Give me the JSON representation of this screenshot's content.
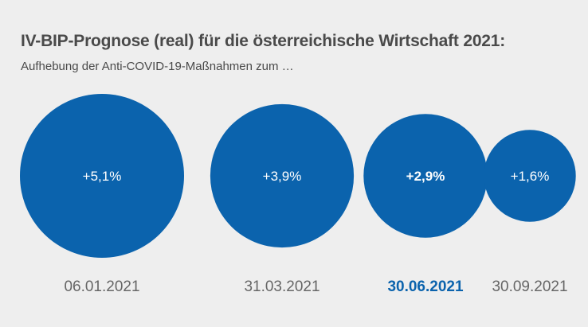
{
  "chart_data": {
    "type": "bubble",
    "title": "IV-BIP-Prognose (real) für die österreichische Wirtschaft 2021:",
    "subtitle": "Aufhebung der Anti-COVID-19-Maßnahmen zum …",
    "categories": [
      "06.01.2021",
      "31.03.2021",
      "30.06.2021",
      "30.09.2021"
    ],
    "values": [
      5.1,
      3.9,
      2.9,
      1.6
    ],
    "value_labels": [
      "+5,1%",
      "+3,9%",
      "+2,9%",
      "+1,6%"
    ],
    "highlight_index": 2,
    "colors": {
      "bubble": "#0b63ad",
      "bubble_label": "#ffffff",
      "category_label": "#666666",
      "highlight_label": "#0b63ad",
      "title": "#4a4a4a",
      "background": "#eeeeee"
    }
  }
}
